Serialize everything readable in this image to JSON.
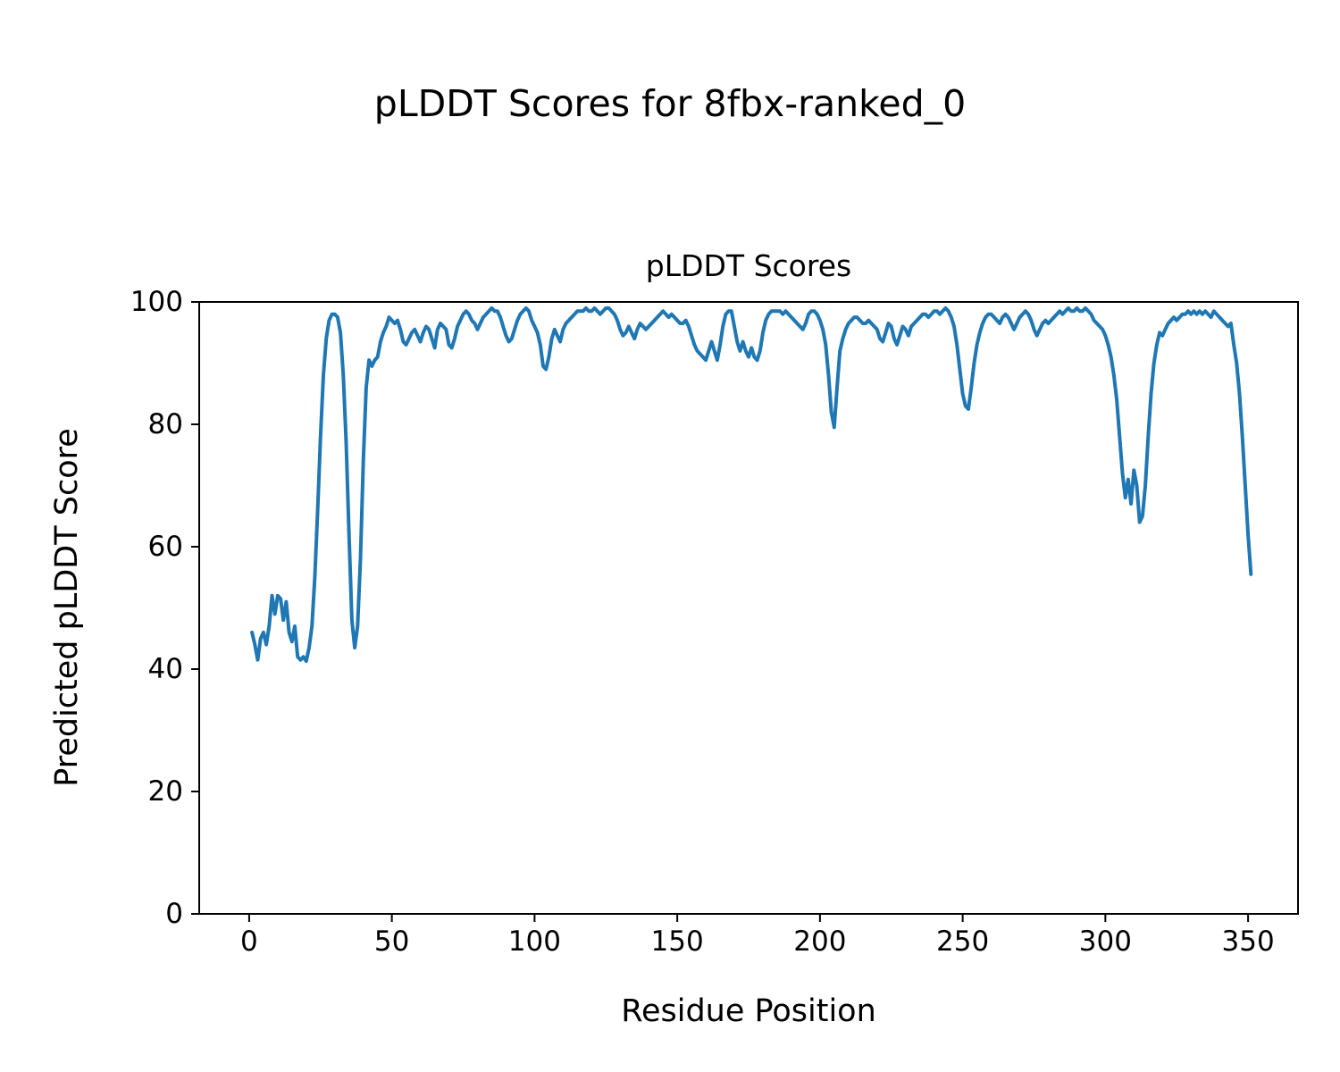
{
  "chart_data": {
    "type": "line",
    "title": "pLDDT Scores for 8fbx-ranked_0",
    "axes_title": "pLDDT Scores",
    "xlabel": "Residue Position",
    "ylabel": "Predicted pLDDT Score",
    "xlim": [
      -17.5,
      367.5
    ],
    "ylim": [
      0,
      100
    ],
    "xticks": [
      0,
      50,
      100,
      150,
      200,
      250,
      300,
      350
    ],
    "yticks": [
      0,
      20,
      40,
      60,
      80,
      100
    ],
    "grid": false,
    "legend": false,
    "line_color": "#1f77b4",
    "line_width": 4,
    "series_name": "pLDDT",
    "x": [
      1,
      2,
      3,
      4,
      5,
      6,
      7,
      8,
      9,
      10,
      11,
      12,
      13,
      14,
      15,
      16,
      17,
      18,
      19,
      20,
      21,
      22,
      23,
      24,
      25,
      26,
      27,
      28,
      29,
      30,
      31,
      32,
      33,
      34,
      35,
      36,
      37,
      38,
      39,
      40,
      41,
      42,
      43,
      44,
      45,
      46,
      47,
      48,
      49,
      50,
      51,
      52,
      53,
      54,
      55,
      56,
      57,
      58,
      59,
      60,
      61,
      62,
      63,
      64,
      65,
      66,
      67,
      68,
      69,
      70,
      71,
      72,
      73,
      74,
      75,
      76,
      77,
      78,
      79,
      80,
      81,
      82,
      83,
      84,
      85,
      86,
      87,
      88,
      89,
      90,
      91,
      92,
      93,
      94,
      95,
      96,
      97,
      98,
      99,
      100,
      101,
      102,
      103,
      104,
      105,
      106,
      107,
      108,
      109,
      110,
      111,
      112,
      113,
      114,
      115,
      116,
      117,
      118,
      119,
      120,
      121,
      122,
      123,
      124,
      125,
      126,
      127,
      128,
      129,
      130,
      131,
      132,
      133,
      134,
      135,
      136,
      137,
      138,
      139,
      140,
      141,
      142,
      143,
      144,
      145,
      146,
      147,
      148,
      149,
      150,
      151,
      152,
      153,
      154,
      155,
      156,
      157,
      158,
      159,
      160,
      161,
      162,
      163,
      164,
      165,
      166,
      167,
      168,
      169,
      170,
      171,
      172,
      173,
      174,
      175,
      176,
      177,
      178,
      179,
      180,
      181,
      182,
      183,
      184,
      185,
      186,
      187,
      188,
      189,
      190,
      191,
      192,
      193,
      194,
      195,
      196,
      197,
      198,
      199,
      200,
      201,
      202,
      203,
      204,
      205,
      206,
      207,
      208,
      209,
      210,
      211,
      212,
      213,
      214,
      215,
      216,
      217,
      218,
      219,
      220,
      221,
      222,
      223,
      224,
      225,
      226,
      227,
      228,
      229,
      230,
      231,
      232,
      233,
      234,
      235,
      236,
      237,
      238,
      239,
      240,
      241,
      242,
      243,
      244,
      245,
      246,
      247,
      248,
      249,
      250,
      251,
      252,
      253,
      254,
      255,
      256,
      257,
      258,
      259,
      260,
      261,
      262,
      263,
      264,
      265,
      266,
      267,
      268,
      269,
      270,
      271,
      272,
      273,
      274,
      275,
      276,
      277,
      278,
      279,
      280,
      281,
      282,
      283,
      284,
      285,
      286,
      287,
      288,
      289,
      290,
      291,
      292,
      293,
      294,
      295,
      296,
      297,
      298,
      299,
      300,
      301,
      302,
      303,
      304,
      305,
      306,
      307,
      308,
      309,
      310,
      311,
      312,
      313,
      314,
      315,
      316,
      317,
      318,
      319,
      320,
      321,
      322,
      323,
      324,
      325,
      326,
      327,
      328,
      329,
      330,
      331,
      332,
      333,
      334,
      335,
      336,
      337,
      338,
      339,
      340,
      341,
      342,
      343,
      344,
      345,
      346,
      347,
      348,
      349,
      350,
      351
    ],
    "y": [
      46,
      44,
      41.5,
      45,
      46,
      44,
      47,
      52,
      49,
      52,
      51.5,
      48,
      51,
      46,
      44.5,
      47,
      42,
      41.5,
      42,
      41.3,
      43.5,
      47,
      55,
      66,
      78,
      88,
      94,
      97,
      98,
      98,
      97.5,
      95,
      88,
      77,
      62,
      48,
      43.5,
      47,
      58,
      74,
      86,
      90.5,
      89.5,
      90.5,
      91,
      93.5,
      95,
      96,
      97.5,
      97,
      96.5,
      97,
      95.5,
      93.5,
      93,
      94,
      95,
      95.5,
      94.5,
      93.5,
      95,
      96,
      95.5,
      94,
      92.5,
      95.5,
      96.5,
      96,
      95.5,
      93,
      92.5,
      94,
      96,
      97,
      98,
      98.5,
      98,
      97,
      96.5,
      95.5,
      96.5,
      97.5,
      98,
      98.5,
      99,
      98.5,
      98.5,
      97.5,
      96,
      94.5,
      93.5,
      94,
      95.5,
      97,
      98,
      98.5,
      99,
      98.5,
      97,
      96,
      95,
      93,
      89.5,
      89,
      91,
      94,
      95.5,
      94.5,
      93.5,
      95.5,
      96.5,
      97,
      97.5,
      98,
      98.5,
      98.5,
      98.5,
      99,
      98.5,
      98.5,
      99,
      98.5,
      98,
      98.5,
      99,
      99,
      98.5,
      98,
      97,
      95.5,
      94.5,
      95,
      96,
      95,
      94,
      95.5,
      96.5,
      96,
      95.5,
      96,
      96.5,
      97,
      97.5,
      98,
      98.5,
      98,
      97.5,
      98,
      97.5,
      97,
      96.5,
      96.5,
      97,
      96,
      94.5,
      93,
      92,
      91.5,
      91,
      90.5,
      92,
      93.5,
      92,
      90.5,
      93,
      96,
      98,
      98.5,
      98.5,
      96,
      93.5,
      92,
      93.5,
      92,
      91,
      92.5,
      91,
      90.5,
      92,
      95,
      97,
      98,
      98.5,
      98.5,
      98.5,
      98.5,
      98,
      98.5,
      98,
      97.5,
      97,
      96.5,
      96,
      95.5,
      96.5,
      98,
      98.5,
      98.5,
      98,
      97,
      95.5,
      93,
      88,
      82,
      79.5,
      86,
      92,
      94,
      95.5,
      96.5,
      97,
      97.5,
      97.5,
      97,
      96.5,
      96.5,
      97,
      96.5,
      96,
      95.5,
      94,
      93.5,
      95,
      96.5,
      96,
      94,
      93,
      94.5,
      96,
      95.5,
      94.5,
      96,
      96.5,
      97,
      97.5,
      98,
      98,
      97.5,
      98,
      98.5,
      98.5,
      98,
      98.5,
      99,
      98.5,
      97.5,
      96,
      93,
      89,
      85,
      83,
      82.5,
      86,
      90,
      93,
      95,
      96.5,
      97.5,
      98,
      98,
      97.5,
      97,
      96.5,
      97.5,
      98,
      97.5,
      96.5,
      95.5,
      96.5,
      97.5,
      98,
      98.5,
      98,
      97,
      95.5,
      94.5,
      95.5,
      96.5,
      97,
      96.5,
      97,
      97.5,
      98,
      98.5,
      98,
      98.5,
      99,
      98.5,
      98.5,
      99,
      98.5,
      98.5,
      99,
      98.5,
      98,
      97,
      96.5,
      96,
      95.5,
      94.5,
      93,
      91,
      88,
      84,
      78,
      72,
      68,
      71,
      67,
      72.5,
      70,
      64,
      65,
      70,
      78,
      85,
      90,
      93,
      95,
      94.5,
      95.5,
      96.5,
      97,
      97.5,
      97,
      97.5,
      98,
      98,
      98.5,
      98,
      98.5,
      98,
      98.5,
      98,
      98.5,
      98,
      97.5,
      98.5,
      98,
      97.5,
      97,
      96.5,
      96,
      96.5,
      93,
      90,
      85,
      78,
      70,
      62,
      55.5
    ]
  }
}
